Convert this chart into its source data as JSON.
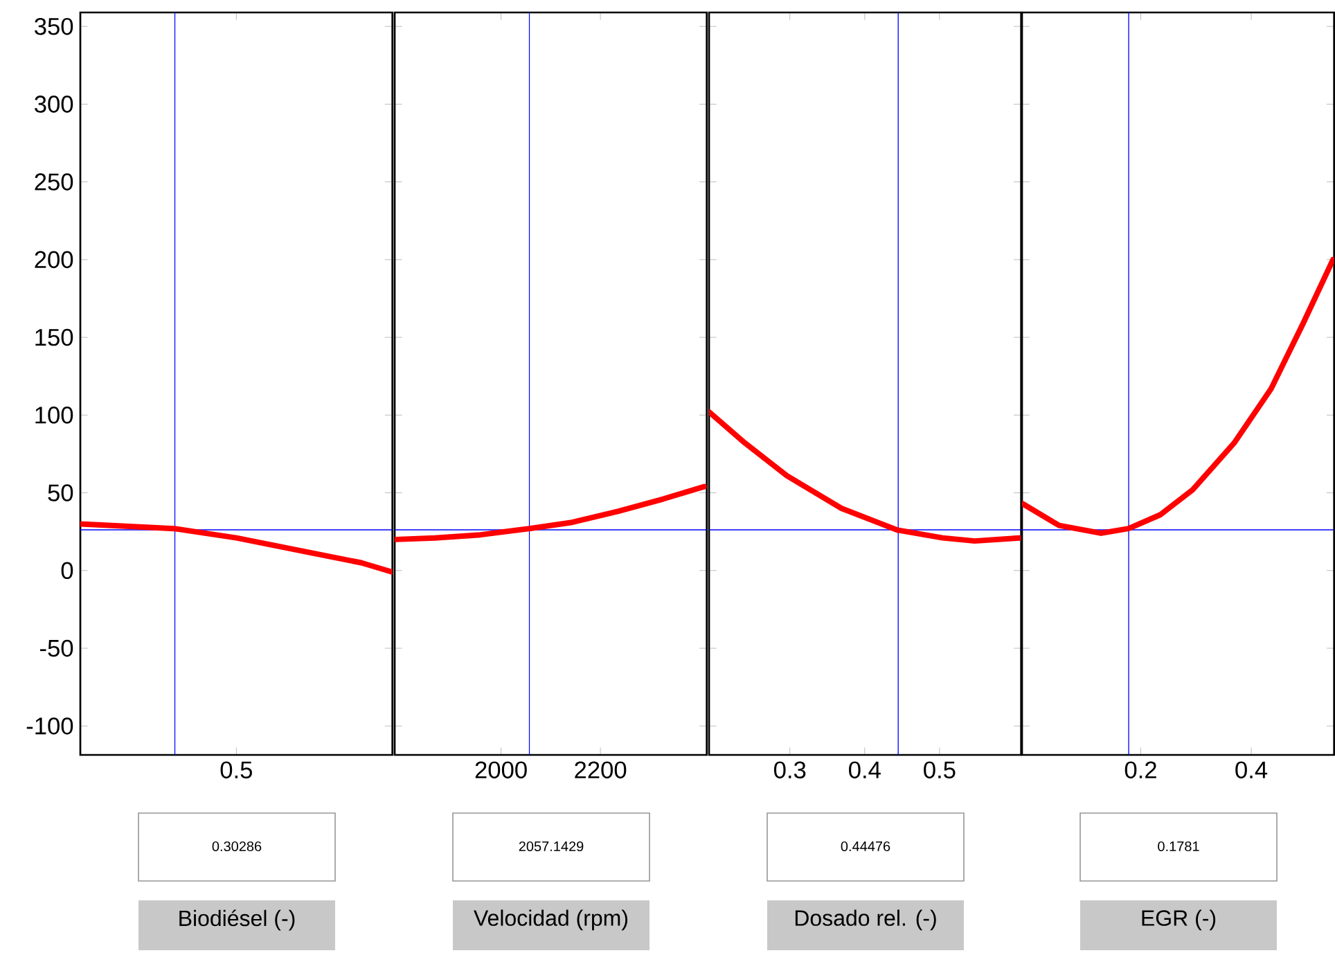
{
  "chart_data": [
    {
      "type": "line",
      "xlabel": "Biodiésel (-)",
      "annotations": [
        "0.30286"
      ],
      "categories": [
        null,
        null,
        null,
        null,
        null,
        "0.5",
        null,
        null,
        null,
        null,
        null
      ],
      "ylim": [
        -118.6,
        359
      ],
      "yticks": [
        -100,
        -50,
        0,
        50,
        100,
        150,
        200,
        250,
        300,
        350
      ],
      "series": [
        {
          "color": "#ff0000",
          "values": [
            30,
            29,
            28,
            27,
            24,
            21,
            17,
            13,
            9,
            5,
            -1
          ]
        }
      ],
      "ref_lines": [
        {
          "axis": "y",
          "value": 26.2,
          "color": "#0000ff"
        }
      ]
    },
    {
      "type": "line",
      "xlabel": "Velocidad (rpm)",
      "annotations": [
        "2057.1429"
      ],
      "xlim": [
        1786,
        2414
      ],
      "xticks": [
        2000,
        2200
      ],
      "ylim": [
        -118.6,
        359
      ],
      "yticks": [
        -100,
        -50,
        0,
        50,
        100,
        150,
        200,
        250,
        300,
        350
      ],
      "tick_labels": "x",
      "series": [
        {
          "color": "#ff0000",
          "x": [
            1789,
            1867,
            1959,
            2057,
            2143,
            2235,
            2326,
            2409
          ],
          "values": [
            20,
            21,
            23,
            27,
            31,
            38,
            46,
            54
          ]
        }
      ],
      "ref_lines": [
        {
          "axis": "x",
          "value": 2057.1429,
          "color": "#0000ff"
        },
        {
          "axis": "y",
          "value": 26.2,
          "color": "#0000ff"
        }
      ]
    },
    {
      "type": "line",
      "xlabel": "Dosado rel. (-)",
      "annotations": [
        "0.44476"
      ],
      "xlim": [
        0.192,
        0.609
      ],
      "xticks": [
        0.3,
        0.4,
        0.5
      ],
      "ylim": [
        -118.6,
        359
      ],
      "yticks": [
        -100,
        -50,
        0,
        50,
        100,
        150,
        200,
        250,
        300,
        350
      ],
      "tick_labels": "x",
      "series": [
        {
          "color": "#ff0000",
          "x": [
            0.192,
            0.24,
            0.296,
            0.369,
            0.444,
            0.504,
            0.547,
            0.607
          ],
          "values": [
            102,
            82,
            61,
            40,
            26,
            21,
            19,
            21
          ]
        }
      ],
      "ref_lines": [
        {
          "axis": "x",
          "value": 0.44476,
          "color": "#0000ff"
        },
        {
          "axis": "y",
          "value": 26.2,
          "color": "#0000ff"
        }
      ]
    },
    {
      "type": "line",
      "xlabel": "EGR (-)",
      "annotations": [
        "0.1781"
      ],
      "xlim": [
        -0.015,
        0.55
      ],
      "xticks": [
        0.2,
        0.4
      ],
      "ylim": [
        -118.6,
        359
      ],
      "yticks": [
        -100,
        -50,
        0,
        50,
        100,
        150,
        200,
        250,
        300,
        350
      ],
      "tick_labels": "x",
      "series": [
        {
          "color": "#ff0000",
          "x": [
            -0.014,
            0.052,
            0.128,
            0.178,
            0.236,
            0.294,
            0.369,
            0.436,
            0.494,
            0.548
          ],
          "values": [
            43,
            29,
            24,
            27,
            36,
            52,
            82,
            117,
            159,
            200
          ]
        }
      ],
      "ref_lines": [
        {
          "axis": "x",
          "value": 0.1781,
          "color": "#0000ff"
        },
        {
          "axis": "y",
          "value": 26.2,
          "color": "#0000ff"
        }
      ]
    }
  ]
}
